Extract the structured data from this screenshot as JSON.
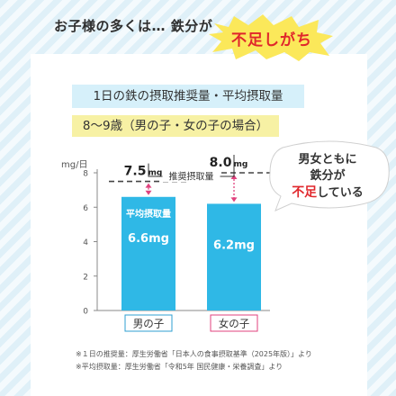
{
  "header": {
    "lead": "お子様の多くは… 鉄分が",
    "emphasis": "不足しがち"
  },
  "chart_data": {
    "type": "bar",
    "title": "1日の鉄の摂取推奨量・平均摂取量",
    "subtitle": "8〜9歳（男の子・女の子の場合）",
    "ylabel": "mg/日",
    "ylim": [
      0,
      8
    ],
    "yticks": [
      "0",
      "2",
      "4",
      "6",
      "8"
    ],
    "grid": false,
    "categories": [
      "男の子",
      "女の子"
    ],
    "category_colors": [
      "#2f9fd0",
      "#e0427e"
    ],
    "bar_color": "#2fb8e6",
    "series": [
      {
        "name": "平均摂取量",
        "values": [
          6.6,
          6.2
        ]
      },
      {
        "name": "推奨摂取量",
        "values": [
          7.5,
          8.0
        ]
      }
    ],
    "bar_labels": [
      "6.6mg",
      "6.2mg"
    ],
    "bar_series_label": "平均摂取量",
    "recommended_labels": [
      {
        "num": "7.5",
        "unit": "mg"
      },
      {
        "num": "8.0",
        "unit": "mg"
      }
    ],
    "recommended_caption": "推奨摂取量",
    "annotation": {
      "line1": "男女ともに",
      "line2": "鉄分が",
      "line3_red": "不足",
      "line3_rest": "している"
    }
  },
  "footnotes": [
    "※１日の推奨量：厚生労働省「日本人の食事摂取基準（2025年版）」より",
    "※平均摂取量：厚生労働省「令和5年 国民健康・栄養調査」より"
  ]
}
